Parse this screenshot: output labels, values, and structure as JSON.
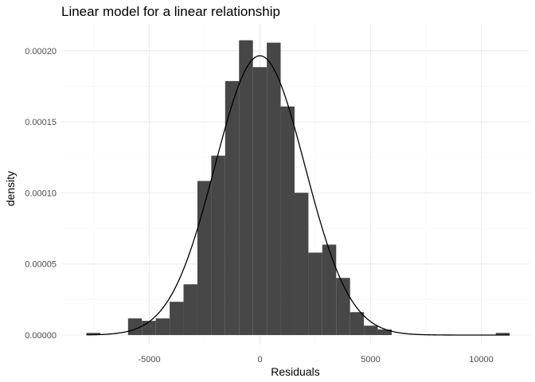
{
  "chart_data": {
    "type": "bar",
    "subtype": "histogram-with-density-curve",
    "title": "Linear model for a linear relationship",
    "xlabel": "Residuals",
    "ylabel": "density",
    "xlim": [
      -8000,
      11500
    ],
    "ylim": [
      0,
      0.00021
    ],
    "x_ticks": [
      -5000,
      0,
      5000,
      10000
    ],
    "x_tick_labels": [
      "-5000",
      "0",
      "5000",
      "10000"
    ],
    "y_ticks": [
      0,
      5e-05,
      0.0001,
      0.00015,
      0.0002
    ],
    "y_tick_labels": [
      "0.00000",
      "0.00005",
      "0.00010",
      "0.00015",
      "0.00020"
    ],
    "grid": true,
    "bin_width": 627,
    "bins": [
      {
        "x0": -7840,
        "x1": -7213,
        "density": 1.5e-06
      },
      {
        "x0": -5960,
        "x1": -5333,
        "density": 1.17e-05
      },
      {
        "x0": -5333,
        "x1": -4706,
        "density": 1e-05
      },
      {
        "x0": -4706,
        "x1": -4079,
        "density": 1.17e-05
      },
      {
        "x0": -4079,
        "x1": -3452,
        "density": 2.34e-05
      },
      {
        "x0": -3452,
        "x1": -2825,
        "density": 3.57e-05
      },
      {
        "x0": -2825,
        "x1": -2198,
        "density": 0.0001084
      },
      {
        "x0": -2198,
        "x1": -1571,
        "density": 0.0001262
      },
      {
        "x0": -1571,
        "x1": -944,
        "density": 0.0001787
      },
      {
        "x0": -944,
        "x1": -317,
        "density": 0.0002074
      },
      {
        "x0": -317,
        "x1": 310,
        "density": 0.0001885
      },
      {
        "x0": 310,
        "x1": 937,
        "density": 0.0002057
      },
      {
        "x0": 937,
        "x1": 1564,
        "density": 0.0001608
      },
      {
        "x0": 1564,
        "x1": 2191,
        "density": 0.0001001
      },
      {
        "x0": 2191,
        "x1": 2818,
        "density": 5.8e-05
      },
      {
        "x0": 2818,
        "x1": 3445,
        "density": 6.36e-05
      },
      {
        "x0": 3445,
        "x1": 4072,
        "density": 4.02e-05
      },
      {
        "x0": 4072,
        "x1": 4699,
        "density": 1.61e-05
      },
      {
        "x0": 4699,
        "x1": 5326,
        "density": 6.6e-06
      },
      {
        "x0": 5326,
        "x1": 5953,
        "density": 3.9e-06
      },
      {
        "x0": 10657,
        "x1": 11284,
        "density": 1.5e-06
      }
    ],
    "density_curve": {
      "type": "normal",
      "mean": 0,
      "sd": 2030,
      "peak_density": 0.0001965
    }
  }
}
